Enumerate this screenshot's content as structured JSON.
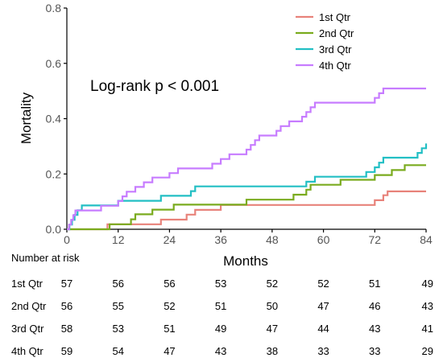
{
  "chart_data": {
    "type": "line",
    "step": true,
    "xlabel": "Months",
    "ylabel": "Mortality",
    "xlim": [
      0,
      84
    ],
    "ylim": [
      0,
      0.8
    ],
    "xticks": [
      "0",
      "12",
      "24",
      "36",
      "48",
      "60",
      "72",
      "84"
    ],
    "yticks": [
      "0.0",
      "0.2",
      "0.4",
      "0.6",
      "0.8"
    ],
    "grid": false,
    "legend_position": "top-right",
    "annotation": "Log-rank p < 0.001",
    "series": [
      {
        "name": "1st Qtr",
        "color": "#E8827A",
        "points": [
          [
            0,
            0
          ],
          [
            9.5,
            0
          ],
          [
            9.5,
            0.018
          ],
          [
            22,
            0.018
          ],
          [
            22,
            0.035
          ],
          [
            28,
            0.035
          ],
          [
            28,
            0.053
          ],
          [
            30,
            0.053
          ],
          [
            30,
            0.07
          ],
          [
            36,
            0.07
          ],
          [
            36,
            0.088
          ],
          [
            72,
            0.088
          ],
          [
            72,
            0.105
          ],
          [
            74,
            0.105
          ],
          [
            74,
            0.123
          ],
          [
            75,
            0.123
          ],
          [
            75,
            0.137
          ],
          [
            84,
            0.137
          ]
        ]
      },
      {
        "name": "2nd Qtr",
        "color": "#7AAB1E",
        "points": [
          [
            0,
            0
          ],
          [
            10,
            0
          ],
          [
            10,
            0.018
          ],
          [
            15,
            0.018
          ],
          [
            15,
            0.036
          ],
          [
            16,
            0.036
          ],
          [
            16,
            0.054
          ],
          [
            20,
            0.054
          ],
          [
            20,
            0.071
          ],
          [
            25,
            0.071
          ],
          [
            25,
            0.089
          ],
          [
            42,
            0.089
          ],
          [
            42,
            0.107
          ],
          [
            53,
            0.107
          ],
          [
            53,
            0.125
          ],
          [
            56,
            0.125
          ],
          [
            56,
            0.143
          ],
          [
            57,
            0.143
          ],
          [
            57,
            0.161
          ],
          [
            64,
            0.161
          ],
          [
            64,
            0.179
          ],
          [
            72,
            0.179
          ],
          [
            72,
            0.196
          ],
          [
            76,
            0.196
          ],
          [
            76,
            0.214
          ],
          [
            79,
            0.214
          ],
          [
            79,
            0.232
          ],
          [
            84,
            0.232
          ]
        ]
      },
      {
        "name": "3rd Qtr",
        "color": "#22BFC4",
        "points": [
          [
            0,
            0
          ],
          [
            0.6,
            0
          ],
          [
            0.6,
            0.017
          ],
          [
            1.2,
            0.017
          ],
          [
            1.2,
            0.034
          ],
          [
            1.8,
            0.034
          ],
          [
            1.8,
            0.052
          ],
          [
            2.5,
            0.052
          ],
          [
            2.5,
            0.069
          ],
          [
            3.5,
            0.069
          ],
          [
            3.5,
            0.086
          ],
          [
            12,
            0.086
          ],
          [
            12,
            0.103
          ],
          [
            22,
            0.103
          ],
          [
            22,
            0.121
          ],
          [
            29,
            0.121
          ],
          [
            29,
            0.138
          ],
          [
            30,
            0.138
          ],
          [
            30,
            0.155
          ],
          [
            56,
            0.155
          ],
          [
            56,
            0.172
          ],
          [
            58,
            0.172
          ],
          [
            58,
            0.19
          ],
          [
            70,
            0.19
          ],
          [
            70,
            0.207
          ],
          [
            72,
            0.207
          ],
          [
            72,
            0.224
          ],
          [
            73,
            0.224
          ],
          [
            73,
            0.241
          ],
          [
            74,
            0.241
          ],
          [
            74,
            0.259
          ],
          [
            82,
            0.259
          ],
          [
            82,
            0.276
          ],
          [
            83,
            0.276
          ],
          [
            83,
            0.293
          ],
          [
            84,
            0.293
          ],
          [
            84,
            0.31
          ]
        ]
      },
      {
        "name": "4th Qtr",
        "color": "#C77CFF",
        "points": [
          [
            0,
            0
          ],
          [
            0.5,
            0
          ],
          [
            0.5,
            0.017
          ],
          [
            1,
            0.017
          ],
          [
            1,
            0.034
          ],
          [
            1.5,
            0.034
          ],
          [
            1.5,
            0.051
          ],
          [
            2,
            0.051
          ],
          [
            2,
            0.068
          ],
          [
            8,
            0.068
          ],
          [
            8,
            0.085
          ],
          [
            12,
            0.085
          ],
          [
            12,
            0.102
          ],
          [
            13,
            0.102
          ],
          [
            13,
            0.119
          ],
          [
            14,
            0.119
          ],
          [
            14,
            0.136
          ],
          [
            16,
            0.136
          ],
          [
            16,
            0.153
          ],
          [
            18,
            0.153
          ],
          [
            18,
            0.17
          ],
          [
            20,
            0.17
          ],
          [
            20,
            0.187
          ],
          [
            24,
            0.187
          ],
          [
            24,
            0.203
          ],
          [
            26,
            0.203
          ],
          [
            26,
            0.22
          ],
          [
            34,
            0.22
          ],
          [
            34,
            0.237
          ],
          [
            36,
            0.237
          ],
          [
            36,
            0.254
          ],
          [
            38,
            0.254
          ],
          [
            38,
            0.271
          ],
          [
            42,
            0.271
          ],
          [
            42,
            0.288
          ],
          [
            43,
            0.288
          ],
          [
            43,
            0.305
          ],
          [
            44,
            0.305
          ],
          [
            44,
            0.322
          ],
          [
            45,
            0.322
          ],
          [
            45,
            0.339
          ],
          [
            49,
            0.339
          ],
          [
            49,
            0.356
          ],
          [
            50,
            0.356
          ],
          [
            50,
            0.373
          ],
          [
            52,
            0.373
          ],
          [
            52,
            0.39
          ],
          [
            55,
            0.39
          ],
          [
            55,
            0.407
          ],
          [
            56,
            0.407
          ],
          [
            56,
            0.424
          ],
          [
            57,
            0.424
          ],
          [
            57,
            0.441
          ],
          [
            58,
            0.441
          ],
          [
            58,
            0.458
          ],
          [
            72,
            0.458
          ],
          [
            72,
            0.475
          ],
          [
            73,
            0.475
          ],
          [
            73,
            0.492
          ],
          [
            74,
            0.492
          ],
          [
            74,
            0.509
          ],
          [
            84,
            0.509
          ]
        ]
      }
    ],
    "risk_table": {
      "title": "Number at risk",
      "times": [
        0,
        12,
        24,
        36,
        48,
        60,
        72,
        84
      ],
      "rows": [
        {
          "label": "1st Qtr",
          "values": [
            "57",
            "56",
            "56",
            "53",
            "52",
            "52",
            "51",
            "49"
          ]
        },
        {
          "label": "2nd Qtr",
          "values": [
            "56",
            "55",
            "52",
            "51",
            "50",
            "47",
            "46",
            "43"
          ]
        },
        {
          "label": "3rd Qtr",
          "values": [
            "58",
            "53",
            "51",
            "49",
            "47",
            "44",
            "43",
            "41"
          ]
        },
        {
          "label": "4th Qtr",
          "values": [
            "59",
            "54",
            "47",
            "43",
            "38",
            "33",
            "33",
            "29"
          ]
        }
      ]
    }
  }
}
